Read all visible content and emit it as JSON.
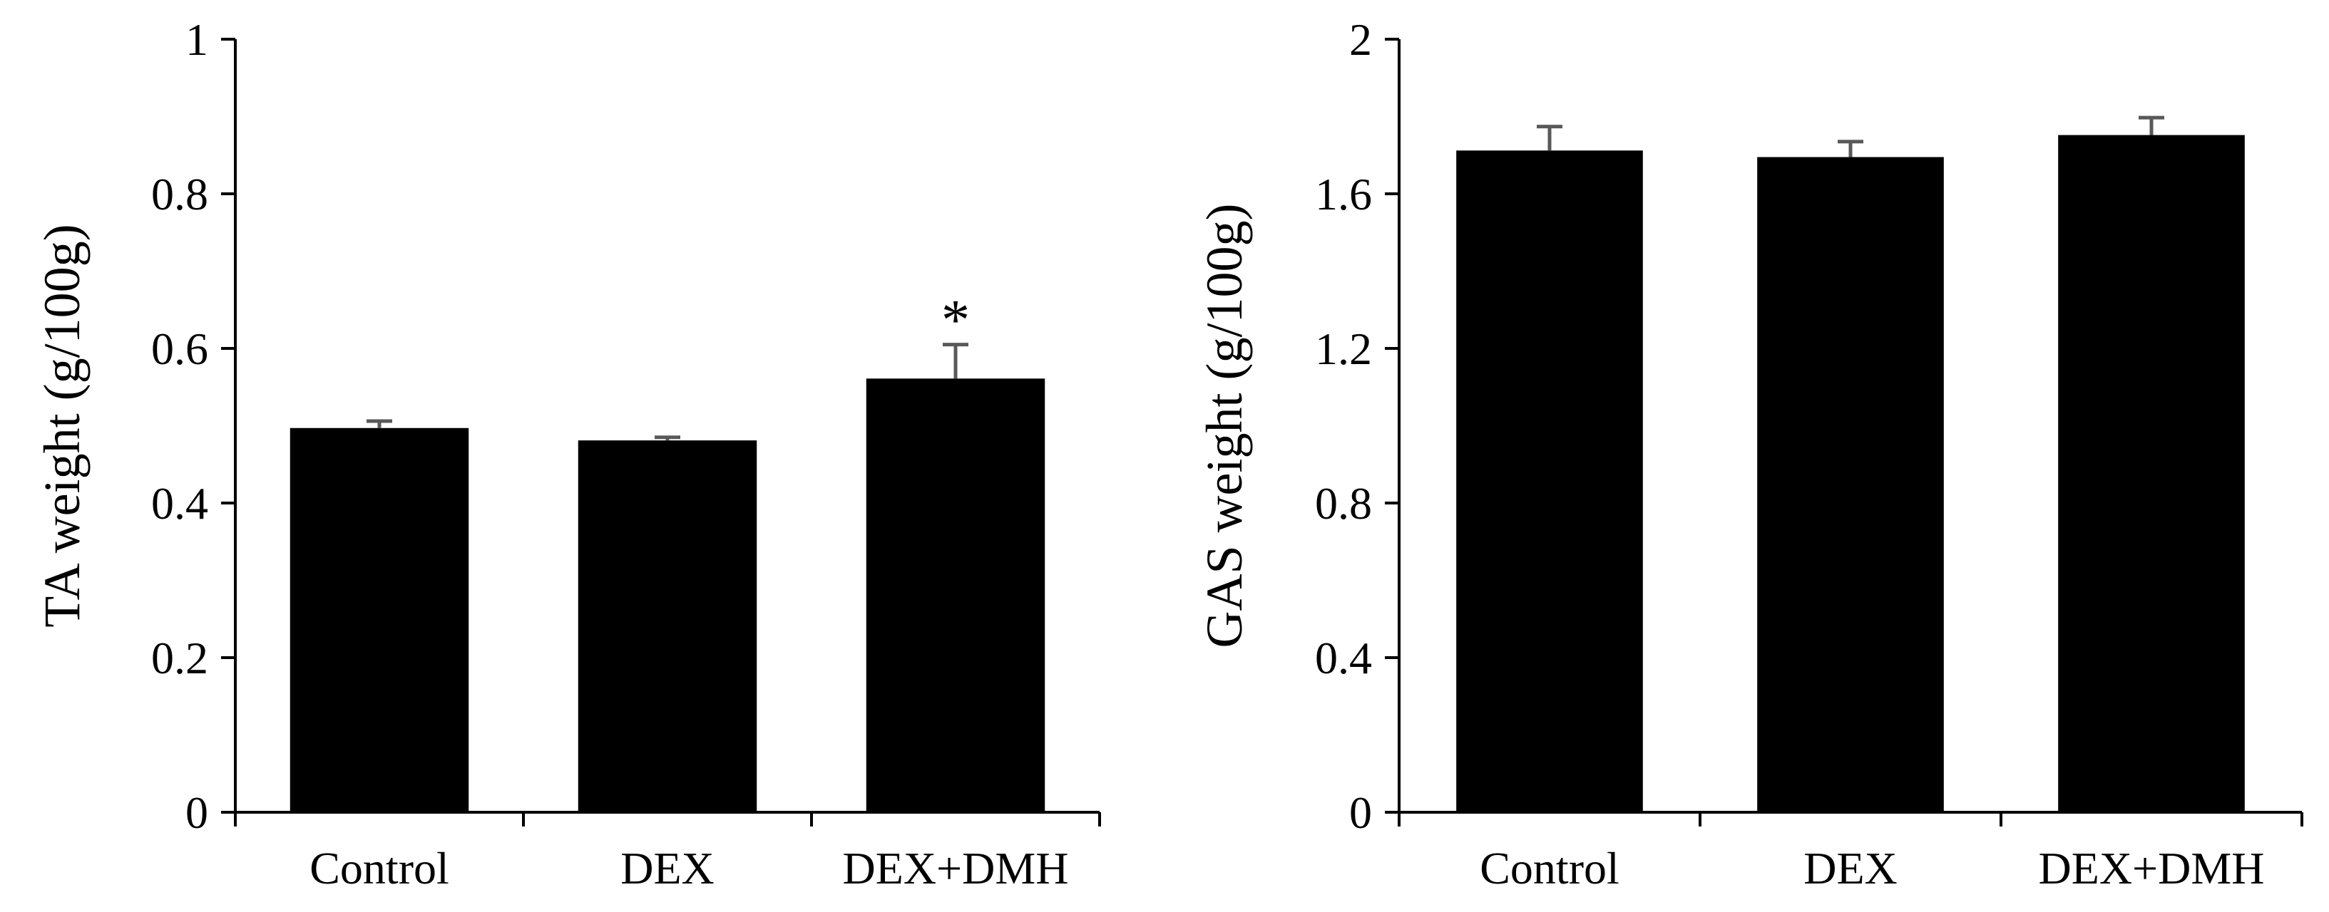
{
  "chart_data": [
    {
      "type": "bar",
      "title": "",
      "xlabel": "",
      "ylabel": "TA weight (g/100g)",
      "ylim": [
        0,
        1
      ],
      "yticks": [
        0,
        0.2,
        0.4,
        0.6,
        0.8,
        1
      ],
      "ytick_labels": [
        "0",
        "0.2",
        "0.4",
        "0.6",
        "0.8",
        "1"
      ],
      "categories": [
        "Control",
        "DEX",
        "DEX+DMH"
      ],
      "values": [
        0.497,
        0.481,
        0.561
      ],
      "errors": [
        0.009,
        0.004,
        0.044
      ],
      "annotations": [
        {
          "category": "DEX+DMH",
          "text": "*"
        }
      ],
      "bar_color": "#000000",
      "error_color": "#595959",
      "grid": false
    },
    {
      "type": "bar",
      "title": "",
      "xlabel": "",
      "ylabel": "GAS weight (g/100g)",
      "ylim": [
        0,
        2
      ],
      "yticks": [
        0,
        0.4,
        0.8,
        1.2,
        1.6,
        2
      ],
      "ytick_labels": [
        "0",
        "0.4",
        "0.8",
        "1.2",
        "1.6",
        "2"
      ],
      "categories": [
        "Control",
        "DEX",
        "DEX+DMH"
      ],
      "values": [
        1.712,
        1.695,
        1.752
      ],
      "errors": [
        0.062,
        0.04,
        0.045
      ],
      "annotations": [],
      "bar_color": "#000000",
      "error_color": "#595959",
      "grid": false
    }
  ]
}
